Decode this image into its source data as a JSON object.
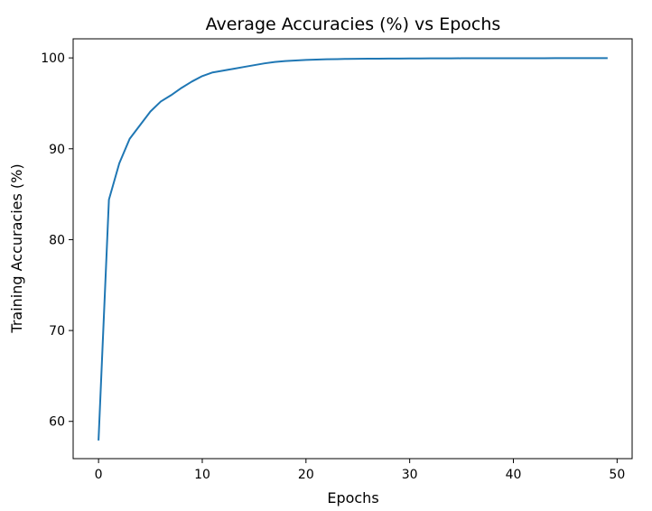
{
  "chart_data": {
    "type": "line",
    "title": "Average Accuracies (%) vs Epochs",
    "xlabel": "Epochs",
    "ylabel": "Training Accuracies (%)",
    "xlim": [
      -2.45,
      51.45
    ],
    "ylim": [
      55.9,
      102.1
    ],
    "xticks": [
      0,
      10,
      20,
      30,
      40,
      50
    ],
    "yticks": [
      60,
      70,
      80,
      90,
      100
    ],
    "grid": false,
    "series": [
      {
        "color": "#1f77b4",
        "x": [
          0,
          1,
          2,
          3,
          4,
          5,
          6,
          7,
          8,
          9,
          10,
          11,
          12,
          13,
          14,
          15,
          16,
          17,
          18,
          19,
          20,
          21,
          22,
          23,
          24,
          25,
          26,
          27,
          28,
          29,
          30,
          31,
          32,
          33,
          34,
          35,
          36,
          37,
          38,
          39,
          40,
          41,
          42,
          43,
          44,
          45,
          46,
          47,
          48,
          49
        ],
        "y": [
          58.0,
          84.4,
          88.4,
          91.1,
          92.6,
          94.1,
          95.2,
          95.9,
          96.7,
          97.4,
          98.0,
          98.4,
          98.6,
          98.8,
          99.0,
          99.2,
          99.4,
          99.55,
          99.65,
          99.72,
          99.78,
          99.82,
          99.85,
          99.87,
          99.89,
          99.9,
          99.91,
          99.92,
          99.93,
          99.93,
          99.94,
          99.94,
          99.95,
          99.95,
          99.95,
          99.96,
          99.96,
          99.96,
          99.96,
          99.97,
          99.97,
          99.97,
          99.97,
          99.97,
          99.98,
          99.98,
          99.98,
          99.98,
          99.98,
          99.98
        ]
      }
    ]
  }
}
